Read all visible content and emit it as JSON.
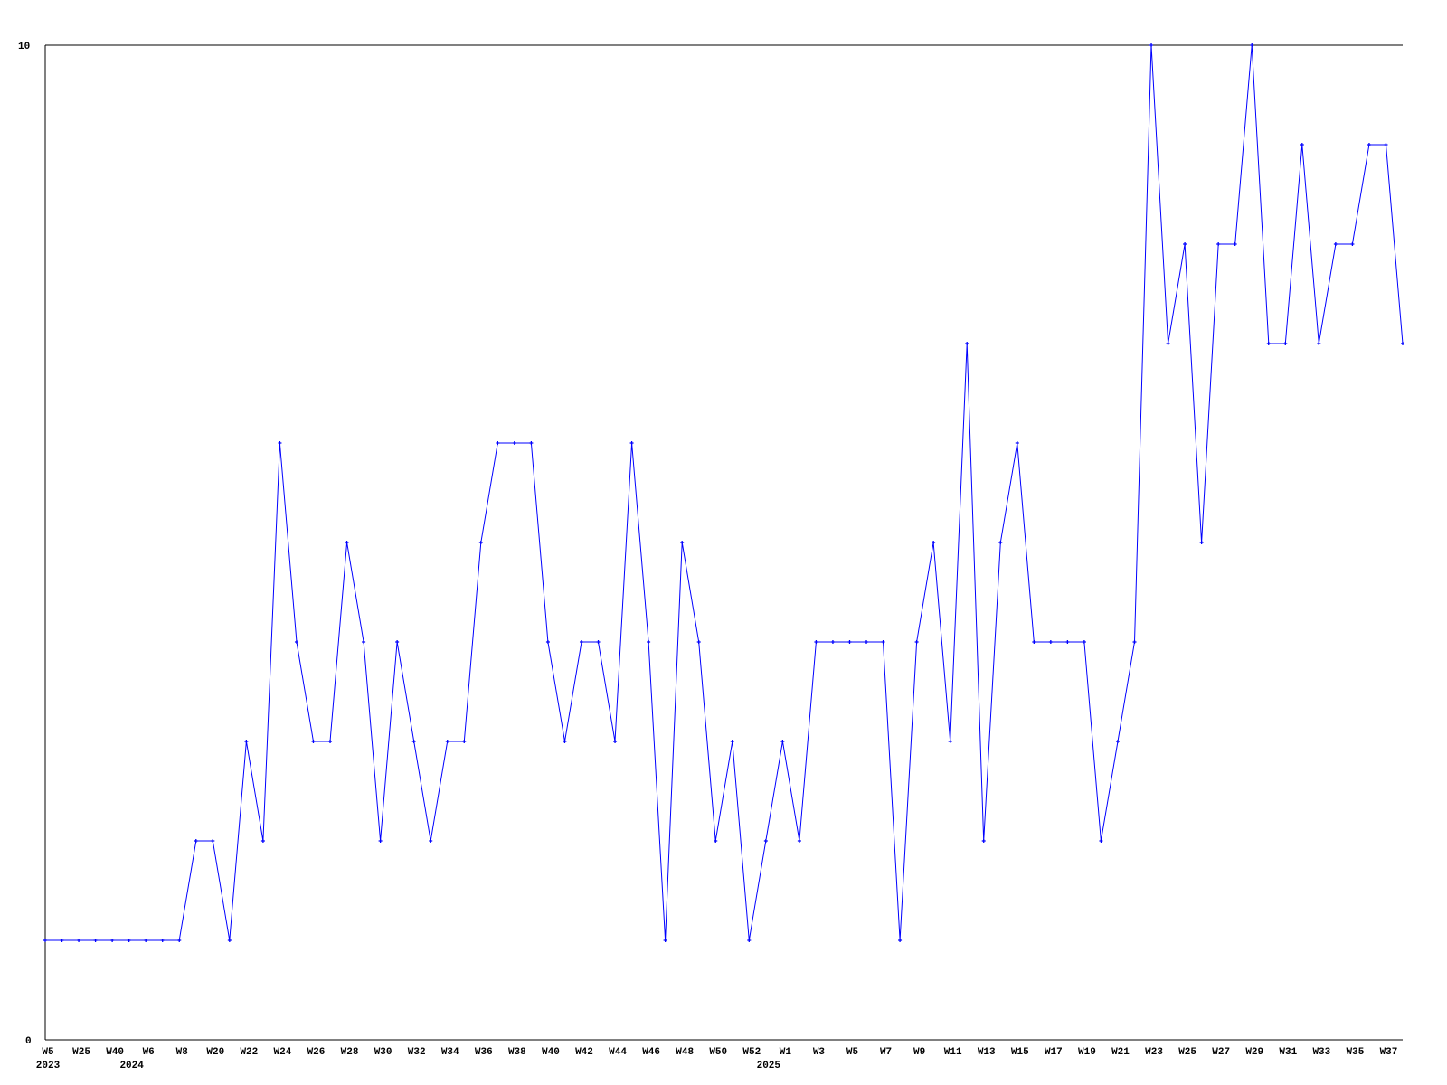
{
  "chart_data": {
    "type": "line",
    "title": "",
    "xlabel": "",
    "ylabel": "",
    "ylim": [
      0,
      10
    ],
    "y_ticks": [
      "0",
      "10"
    ],
    "grid": false,
    "line_color": "#0000ff",
    "markers": true,
    "x_tick_labels": [
      {
        "index": 0,
        "label": "W5"
      },
      {
        "index": 2,
        "label": "W25"
      },
      {
        "index": 4,
        "label": "W40"
      },
      {
        "index": 6,
        "label": "W6"
      },
      {
        "index": 8,
        "label": "W8"
      },
      {
        "index": 10,
        "label": "W20"
      },
      {
        "index": 12,
        "label": "W22"
      },
      {
        "index": 14,
        "label": "W24"
      },
      {
        "index": 16,
        "label": "W26"
      },
      {
        "index": 18,
        "label": "W28"
      },
      {
        "index": 20,
        "label": "W30"
      },
      {
        "index": 22,
        "label": "W32"
      },
      {
        "index": 24,
        "label": "W34"
      },
      {
        "index": 26,
        "label": "W36"
      },
      {
        "index": 28,
        "label": "W38"
      },
      {
        "index": 30,
        "label": "W40"
      },
      {
        "index": 32,
        "label": "W42"
      },
      {
        "index": 34,
        "label": "W44"
      },
      {
        "index": 36,
        "label": "W46"
      },
      {
        "index": 38,
        "label": "W48"
      },
      {
        "index": 40,
        "label": "W50"
      },
      {
        "index": 42,
        "label": "W52"
      },
      {
        "index": 44,
        "label": "W1"
      },
      {
        "index": 46,
        "label": "W3"
      },
      {
        "index": 48,
        "label": "W5"
      },
      {
        "index": 50,
        "label": "W7"
      },
      {
        "index": 52,
        "label": "W9"
      },
      {
        "index": 54,
        "label": "W11"
      },
      {
        "index": 56,
        "label": "W13"
      },
      {
        "index": 58,
        "label": "W15"
      },
      {
        "index": 60,
        "label": "W17"
      },
      {
        "index": 62,
        "label": "W19"
      },
      {
        "index": 64,
        "label": "W21"
      },
      {
        "index": 66,
        "label": "W23"
      },
      {
        "index": 68,
        "label": "W25"
      },
      {
        "index": 70,
        "label": "W27"
      },
      {
        "index": 72,
        "label": "W29"
      },
      {
        "index": 74,
        "label": "W31"
      },
      {
        "index": 76,
        "label": "W33"
      },
      {
        "index": 78,
        "label": "W35"
      },
      {
        "index": 80,
        "label": "W37"
      }
    ],
    "year_labels": [
      {
        "index": 0,
        "label": "2023"
      },
      {
        "index": 5,
        "label": "2024"
      },
      {
        "index": 43,
        "label": "2025"
      }
    ],
    "values": [
      1,
      1,
      1,
      1,
      1,
      1,
      1,
      1,
      1,
      2,
      2,
      1,
      3,
      2,
      6,
      4,
      3,
      3,
      5,
      4,
      2,
      4,
      3,
      2,
      3,
      3,
      5,
      6,
      6,
      6,
      4,
      3,
      4,
      4,
      3,
      6,
      4,
      1,
      5,
      4,
      2,
      3,
      1,
      2,
      3,
      2,
      4,
      4,
      4,
      4,
      4,
      1,
      4,
      5,
      3,
      7,
      2,
      5,
      6,
      4,
      4,
      4,
      4,
      2,
      3,
      4,
      10,
      7,
      8,
      5,
      8,
      8,
      10,
      7,
      7,
      9,
      7,
      8,
      8,
      9,
      9,
      7
    ]
  }
}
